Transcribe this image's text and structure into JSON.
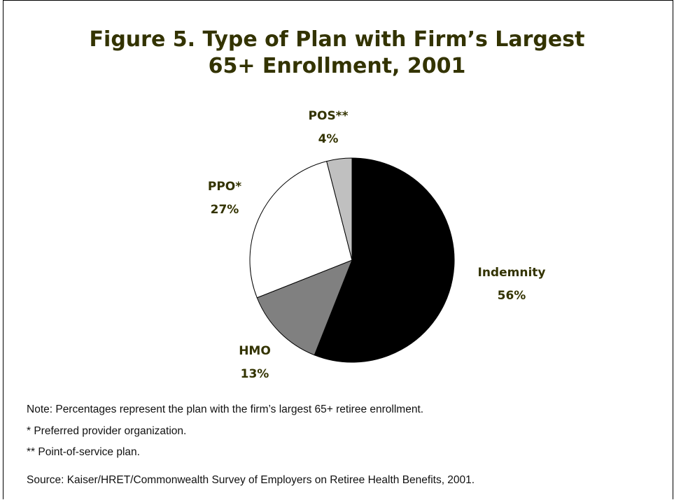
{
  "chart_data": {
    "type": "pie",
    "title_lines": [
      "Figure 5. Type of Plan with Firm’s Largest",
      "65+ Enrollment, 2001"
    ],
    "slices": [
      {
        "label": "Indemnity",
        "value": 56,
        "value_label": "56%",
        "color": "#000000"
      },
      {
        "label": "HMO",
        "value": 13,
        "value_label": "13%",
        "color": "#808080"
      },
      {
        "label": "PPO*",
        "value": 27,
        "value_label": "27%",
        "color": "#ffffff"
      },
      {
        "label": "POS**",
        "value": 4,
        "value_label": "4%",
        "color": "#c0c0c0"
      }
    ],
    "start": "12 o'clock",
    "direction": "clockwise"
  },
  "notes": {
    "note": "Note: Percentages represent the plan with the firm’s largest 65+ retiree enrollment.",
    "ppo": " * Preferred provider organization.",
    "pos": "** Point-of-service plan.",
    "source": "Source: Kaiser/HRET/Commonwealth Survey of Employers on Retiree Health Benefits, 2001."
  },
  "colors": {
    "title": "#333300",
    "label": "#333300"
  }
}
